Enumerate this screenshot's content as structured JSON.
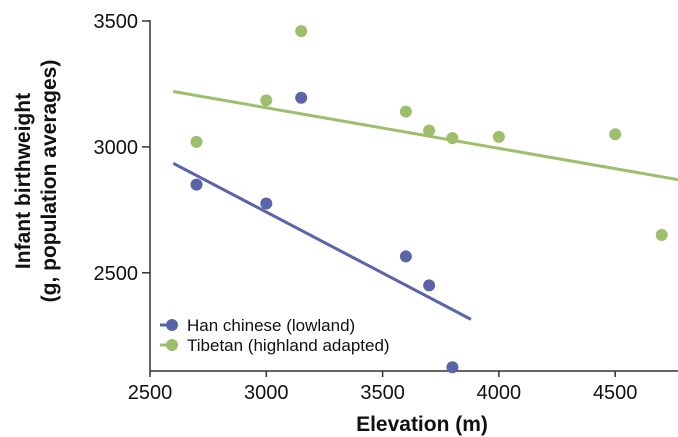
{
  "chart_data": {
    "type": "scatter",
    "xlabel": "Elevation (m)",
    "ylabel_lines": [
      "Infant birthweight",
      "(g, population averages)"
    ],
    "xlim": [
      2500,
      4770
    ],
    "ylim": [
      2110,
      3500
    ],
    "xticks": [
      2500,
      3000,
      3500,
      4000,
      4500
    ],
    "yticks": [
      2500,
      3000,
      3500
    ],
    "grid": false,
    "legend_position": "bottom-left",
    "series": [
      {
        "name": "Han chinese (lowland)",
        "color": "#5a64a8",
        "points": [
          [
            2700,
            2850
          ],
          [
            3000,
            2775
          ],
          [
            3150,
            3195
          ],
          [
            3600,
            2565
          ],
          [
            3700,
            2450
          ],
          [
            3800,
            2125
          ]
        ],
        "trendline": [
          [
            2600,
            2935
          ],
          [
            3880,
            2315
          ]
        ]
      },
      {
        "name": "Tibetan (highland adapted)",
        "color": "#9dbf6c",
        "points": [
          [
            2700,
            3020
          ],
          [
            3000,
            3185
          ],
          [
            3150,
            3460
          ],
          [
            3600,
            3140
          ],
          [
            3700,
            3065
          ],
          [
            3800,
            3035
          ],
          [
            4000,
            3040
          ],
          [
            4500,
            3050
          ],
          [
            4700,
            2650
          ]
        ],
        "trendline": [
          [
            2600,
            3220
          ],
          [
            4770,
            2870
          ]
        ]
      }
    ]
  }
}
